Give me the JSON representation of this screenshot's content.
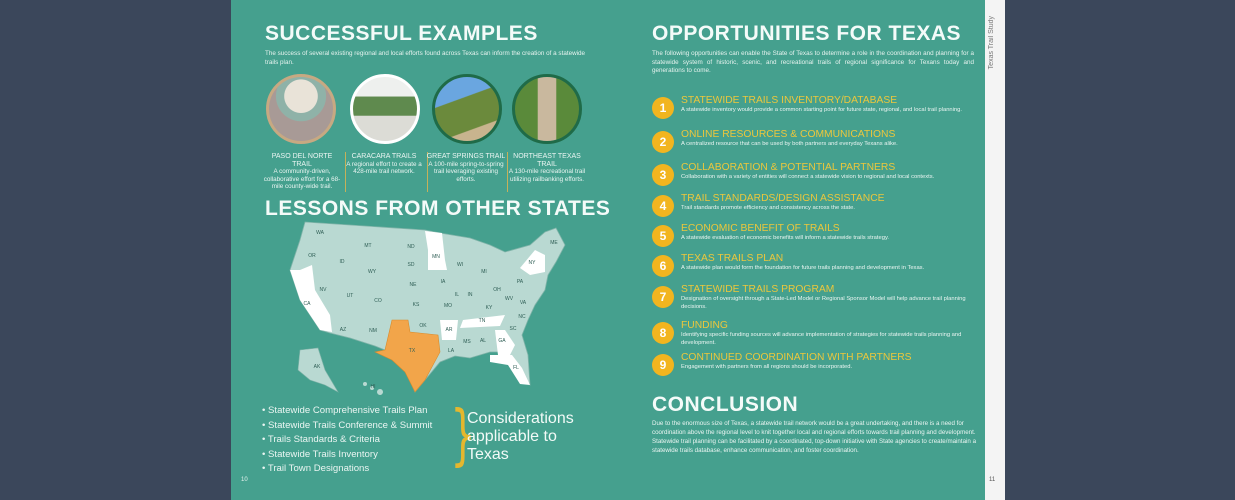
{
  "left_page": {
    "title": "SUCCESSFUL EXAMPLES",
    "intro": "The success of several existing regional and local efforts found across Texas can inform the creation of a statewide trails plan.",
    "examples": [
      {
        "name": "PASO DEL NORTE TRAIL",
        "desc": "A community-driven, collaborative effort for a 68-mile county-wide trail."
      },
      {
        "name": "CARACARA TRAILS",
        "desc": "A regional effort to create a 428-mile trail network."
      },
      {
        "name": "GREAT SPRINGS TRAIL",
        "desc": "A 100-mile spring-to-spring trail leveraging existing efforts."
      },
      {
        "name": "NORTHEAST TEXAS TRAIL",
        "desc": "A 130-mile recreational trail utilizing railbanking efforts."
      }
    ],
    "lessons_title": "LESSONS FROM OTHER STATES",
    "map": {
      "highlight_color": "#f2a54a",
      "reference_state_color": "#ffffff",
      "other_color": "#b9d9d2",
      "labels": [
        "WA",
        "OR",
        "CA",
        "ID",
        "NV",
        "MT",
        "WY",
        "UT",
        "CO",
        "AZ",
        "NM",
        "ND",
        "SD",
        "NE",
        "KS",
        "OK",
        "TX",
        "MN",
        "IA",
        "MO",
        "AR",
        "LA",
        "WI",
        "IL",
        "MI",
        "IN",
        "OH",
        "KY",
        "TN",
        "MS",
        "AL",
        "GA",
        "FL",
        "SC",
        "NC",
        "VA",
        "WV",
        "PA",
        "NY",
        "ME",
        "AK",
        "HI"
      ]
    },
    "considerations": [
      "Statewide Comprehensive Trails Plan",
      "Statewide Trails Conference & Summit",
      "Trails Standards & Criteria",
      "Statewide Trails Inventory",
      "Trail Town Designations"
    ],
    "considerations_label": "Considerations applicable to Texas",
    "page_number": "10"
  },
  "right_page": {
    "title": "OPPORTUNITIES FOR TEXAS",
    "intro": "The following opportunities can enable the State of Texas to determine a role in the coordination and planning for a statewide system of historic, scenic, and recreational trails of regional significance for Texans today and generations to come.",
    "opportunities": [
      {
        "n": "1",
        "title": "STATEWIDE TRAILS INVENTORY/DATABASE",
        "desc": "A statewide inventory would provide a common starting point for future state, regional, and local trail planning."
      },
      {
        "n": "2",
        "title": "ONLINE RESOURCES & COMMUNICATIONS",
        "desc": "A centralized resource that can be used by both partners and everyday Texans alike."
      },
      {
        "n": "3",
        "title": "COLLABORATION & POTENTIAL PARTNERS",
        "desc": "Collaboration with a variety of entities will connect a statewide vision to regional and local contexts."
      },
      {
        "n": "4",
        "title": "TRAIL STANDARDS/DESIGN ASSISTANCE",
        "desc": "Trail standards promote efficiency and consistency across the state."
      },
      {
        "n": "5",
        "title": "ECONOMIC BENEFIT OF TRAILS",
        "desc": "A statewide evaluation of economic benefits will inform a statewide trails strategy."
      },
      {
        "n": "6",
        "title": "TEXAS TRAILS PLAN",
        "desc": "A statewide plan would form the foundation for future trails planning and development in Texas."
      },
      {
        "n": "7",
        "title": "STATEWIDE TRAILS PROGRAM",
        "desc": "Designation of oversight through a State-Led Model or Regional Sponsor Model will help advance trail planning decisions."
      },
      {
        "n": "8",
        "title": "FUNDING",
        "desc": "Identifying specific funding sources will advance implementation of strategies for statewide trails planning and development."
      },
      {
        "n": "9",
        "title": "CONTINUED COORDINATION WITH PARTNERS",
        "desc": "Engagement with partners from all regions should be incorporated."
      }
    ],
    "conclusion_title": "CONCLUSION",
    "conclusion": "Due to the enormous size of Texas, a statewide trail network would be a great undertaking, and there is a need for coordination above the regional level to knit together local and regional efforts towards trail planning and development. Statewide trail planning can be facilitated by a coordinated, top-down initiative with State agencies to create/maintain a statewide trails database, enhance communication, and foster coordination.",
    "page_number": "11",
    "side_tab": "Texas Trail Study"
  },
  "colors": {
    "page": "#45a08e",
    "accent": "#f2b51f",
    "background": "#3b475b"
  }
}
